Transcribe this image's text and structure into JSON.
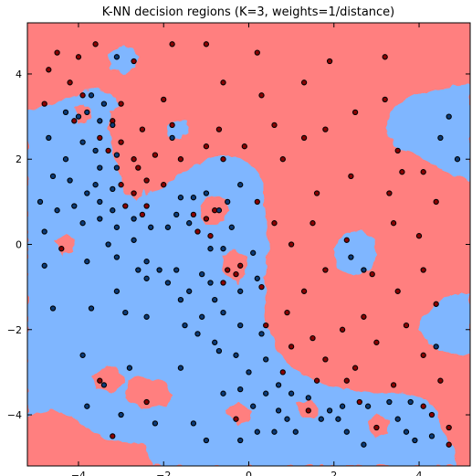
{
  "chart_data": {
    "type": "scatter",
    "title": "K-NN decision regions (K=3, weights=1/distance)",
    "xlabel": "",
    "ylabel": "",
    "xlim": [
      -5.2,
      5.2
    ],
    "ylim": [
      -5.2,
      5.2
    ],
    "xticks": [
      -4,
      -2,
      0,
      2,
      4
    ],
    "yticks": [
      -4,
      -2,
      0,
      2,
      4
    ],
    "xtick_labels": [
      "−4",
      "−2",
      "0",
      "2",
      "4"
    ],
    "ytick_labels": [
      "−4",
      "−2",
      "0",
      "2",
      "4"
    ],
    "grid": false,
    "legend": "none",
    "region_colors": {
      "red": "#ff7f7f",
      "blue": "#7fb6ff"
    },
    "point_colors": {
      "red": "#8b0000",
      "blue": "#0a3a78"
    },
    "series": [
      {
        "class": "red",
        "points": [
          [
            -4.7,
            4.1
          ],
          [
            -4.5,
            4.5
          ],
          [
            -4.0,
            4.4
          ],
          [
            -3.6,
            4.7
          ],
          [
            -4.2,
            3.8
          ],
          [
            -4.8,
            3.3
          ],
          [
            -3.9,
            3.5
          ],
          [
            -1.8,
            4.7
          ],
          [
            -1.0,
            4.7
          ],
          [
            -2.7,
            4.3
          ],
          [
            0.2,
            4.5
          ],
          [
            1.9,
            4.3
          ],
          [
            3.2,
            4.4
          ],
          [
            -0.6,
            3.8
          ],
          [
            1.3,
            3.8
          ],
          [
            0.3,
            3.5
          ],
          [
            2.5,
            3.1
          ],
          [
            -2.0,
            3.4
          ],
          [
            -3.0,
            3.3
          ],
          [
            -4.1,
            2.9
          ],
          [
            -3.2,
            2.9
          ],
          [
            -2.5,
            2.7
          ],
          [
            -1.8,
            2.8
          ],
          [
            -0.7,
            2.7
          ],
          [
            0.6,
            2.8
          ],
          [
            1.8,
            2.7
          ],
          [
            3.2,
            3.4
          ],
          [
            -3.5,
            2.5
          ],
          [
            -3.3,
            2.2
          ],
          [
            -3.0,
            2.4
          ],
          [
            -1.0,
            2.3
          ],
          [
            -0.1,
            2.3
          ],
          [
            1.3,
            2.5
          ],
          [
            3.5,
            2.2
          ],
          [
            -2.7,
            2.0
          ],
          [
            -2.6,
            1.8
          ],
          [
            -2.2,
            2.1
          ],
          [
            -1.6,
            2.0
          ],
          [
            -0.6,
            2.0
          ],
          [
            0.8,
            2.0
          ],
          [
            2.4,
            1.6
          ],
          [
            3.6,
            1.7
          ],
          [
            4.1,
            1.7
          ],
          [
            -3.0,
            1.4
          ],
          [
            -2.7,
            1.2
          ],
          [
            -2.4,
            1.5
          ],
          [
            -2.0,
            1.4
          ],
          [
            0.2,
            1.0
          ],
          [
            1.6,
            1.2
          ],
          [
            3.3,
            1.2
          ],
          [
            -2.9,
            0.9
          ],
          [
            -2.4,
            0.9
          ],
          [
            -2.5,
            0.7
          ],
          [
            -1.3,
            0.7
          ],
          [
            -0.8,
            0.8
          ],
          [
            0.6,
            0.5
          ],
          [
            1.5,
            0.5
          ],
          [
            3.4,
            0.5
          ],
          [
            4.4,
            1.0
          ],
          [
            -1.0,
            0.6
          ],
          [
            -1.2,
            0.3
          ],
          [
            -0.9,
            0.2
          ],
          [
            1.0,
            0.0
          ],
          [
            2.3,
            0.1
          ],
          [
            4.0,
            0.2
          ],
          [
            -4.4,
            -0.1
          ],
          [
            1.8,
            -0.6
          ],
          [
            2.9,
            -0.7
          ],
          [
            4.1,
            -0.6
          ],
          [
            -0.2,
            -0.5
          ],
          [
            -0.5,
            -0.6
          ],
          [
            0.3,
            -1.0
          ],
          [
            -0.6,
            -0.9
          ],
          [
            -0.3,
            -0.7
          ],
          [
            3.5,
            -1.1
          ],
          [
            1.3,
            -1.1
          ],
          [
            4.4,
            -1.4
          ],
          [
            0.9,
            -1.6
          ],
          [
            2.7,
            -1.7
          ],
          [
            0.4,
            -1.9
          ],
          [
            2.2,
            -2.0
          ],
          [
            3.7,
            -1.9
          ],
          [
            1.5,
            -2.2
          ],
          [
            1.0,
            -2.4
          ],
          [
            3.0,
            -2.3
          ],
          [
            4.1,
            -2.6
          ],
          [
            1.8,
            -2.7
          ],
          [
            2.5,
            -2.9
          ],
          [
            0.8,
            -3.0
          ],
          [
            1.6,
            -3.2
          ],
          [
            2.3,
            -3.2
          ],
          [
            3.4,
            -3.3
          ],
          [
            4.5,
            -3.2
          ],
          [
            -3.5,
            -3.2
          ],
          [
            -2.4,
            -3.7
          ],
          [
            2.6,
            -3.7
          ],
          [
            4.1,
            -3.8
          ],
          [
            4.3,
            -4.0
          ],
          [
            -0.3,
            -4.1
          ],
          [
            1.4,
            -3.9
          ],
          [
            3.0,
            -4.3
          ],
          [
            4.7,
            -4.3
          ],
          [
            4.7,
            -4.7
          ],
          [
            -3.2,
            -4.5
          ]
        ]
      },
      {
        "class": "blue",
        "points": [
          [
            -3.1,
            4.4
          ],
          [
            -3.7,
            3.5
          ],
          [
            -3.4,
            3.3
          ],
          [
            -4.3,
            3.1
          ],
          [
            -3.8,
            3.1
          ],
          [
            -4.0,
            3.0
          ],
          [
            -3.5,
            2.9
          ],
          [
            -3.2,
            2.8
          ],
          [
            -4.7,
            2.5
          ],
          [
            -3.9,
            2.4
          ],
          [
            -1.8,
            2.5
          ],
          [
            4.5,
            2.5
          ],
          [
            4.7,
            3.0
          ],
          [
            -3.6,
            2.2
          ],
          [
            -3.1,
            2.1
          ],
          [
            -4.3,
            2.0
          ],
          [
            -3.5,
            1.8
          ],
          [
            -3.1,
            1.8
          ],
          [
            4.9,
            2.0
          ],
          [
            -4.6,
            1.6
          ],
          [
            -4.2,
            1.5
          ],
          [
            -3.6,
            1.4
          ],
          [
            -3.2,
            1.3
          ],
          [
            -3.8,
            1.2
          ],
          [
            -3.5,
            1.0
          ],
          [
            -4.9,
            1.0
          ],
          [
            -4.1,
            0.9
          ],
          [
            -1.6,
            1.1
          ],
          [
            -1.3,
            1.1
          ],
          [
            -1.0,
            1.2
          ],
          [
            -0.5,
            1.0
          ],
          [
            -0.2,
            1.4
          ],
          [
            -3.2,
            0.8
          ],
          [
            -4.5,
            0.8
          ],
          [
            -3.5,
            0.6
          ],
          [
            -2.7,
            0.6
          ],
          [
            -1.7,
            0.7
          ],
          [
            -1.4,
            0.5
          ],
          [
            -0.7,
            0.8
          ],
          [
            -3.9,
            0.5
          ],
          [
            -3.1,
            0.4
          ],
          [
            -2.3,
            0.4
          ],
          [
            -1.9,
            0.4
          ],
          [
            -0.4,
            0.4
          ],
          [
            -4.8,
            0.3
          ],
          [
            -2.7,
            0.1
          ],
          [
            -3.3,
            0.0
          ],
          [
            -0.9,
            -0.1
          ],
          [
            -0.6,
            -0.1
          ],
          [
            0.1,
            -0.2
          ],
          [
            2.4,
            -0.3
          ],
          [
            -3.1,
            -0.3
          ],
          [
            -2.4,
            -0.4
          ],
          [
            -3.8,
            -0.4
          ],
          [
            -4.8,
            -0.5
          ],
          [
            -2.6,
            -0.6
          ],
          [
            -2.1,
            -0.6
          ],
          [
            -1.7,
            -0.6
          ],
          [
            -1.1,
            -0.7
          ],
          [
            2.7,
            -0.6
          ],
          [
            -2.4,
            -0.8
          ],
          [
            -1.9,
            -0.9
          ],
          [
            -0.9,
            -0.9
          ],
          [
            -3.1,
            -1.1
          ],
          [
            -1.4,
            -1.1
          ],
          [
            0.2,
            -0.8
          ],
          [
            -0.2,
            -1.1
          ],
          [
            -1.6,
            -1.3
          ],
          [
            -0.8,
            -1.3
          ],
          [
            -4.6,
            -1.5
          ],
          [
            -3.7,
            -1.5
          ],
          [
            -2.9,
            -1.6
          ],
          [
            -1.1,
            -1.7
          ],
          [
            -0.6,
            -1.6
          ],
          [
            -2.4,
            -1.7
          ],
          [
            -1.5,
            -1.9
          ],
          [
            -0.2,
            -1.9
          ],
          [
            0.3,
            -2.1
          ],
          [
            -1.2,
            -2.1
          ],
          [
            -0.8,
            -2.3
          ],
          [
            4.4,
            -2.4
          ],
          [
            -0.7,
            -2.5
          ],
          [
            -0.3,
            -2.6
          ],
          [
            -3.9,
            -2.6
          ],
          [
            0.4,
            -2.7
          ],
          [
            -1.6,
            -2.9
          ],
          [
            -2.8,
            -2.9
          ],
          [
            0.0,
            -3.0
          ],
          [
            0.7,
            -3.3
          ],
          [
            -3.4,
            -3.3
          ],
          [
            -0.2,
            -3.4
          ],
          [
            1.0,
            -3.5
          ],
          [
            1.4,
            -3.6
          ],
          [
            -0.6,
            -3.5
          ],
          [
            0.4,
            -3.5
          ],
          [
            0.1,
            -3.8
          ],
          [
            2.2,
            -3.8
          ],
          [
            2.8,
            -3.8
          ],
          [
            3.3,
            -3.7
          ],
          [
            -3.8,
            -3.8
          ],
          [
            0.7,
            -3.9
          ],
          [
            1.9,
            -3.9
          ],
          [
            3.8,
            -3.7
          ],
          [
            -1.3,
            -4.2
          ],
          [
            0.9,
            -4.1
          ],
          [
            1.7,
            -4.1
          ],
          [
            -2.2,
            -4.2
          ],
          [
            0.2,
            -4.4
          ],
          [
            0.6,
            -4.4
          ],
          [
            2.3,
            -4.4
          ],
          [
            3.5,
            -4.1
          ],
          [
            4.3,
            -4.5
          ],
          [
            -1.0,
            -4.6
          ],
          [
            -0.2,
            -4.6
          ],
          [
            2.7,
            -4.7
          ],
          [
            3.9,
            -4.6
          ],
          [
            -3.0,
            -4.0
          ],
          [
            1.1,
            -4.4
          ],
          [
            3.7,
            -4.4
          ],
          [
            2.1,
            -4.1
          ]
        ]
      }
    ]
  }
}
